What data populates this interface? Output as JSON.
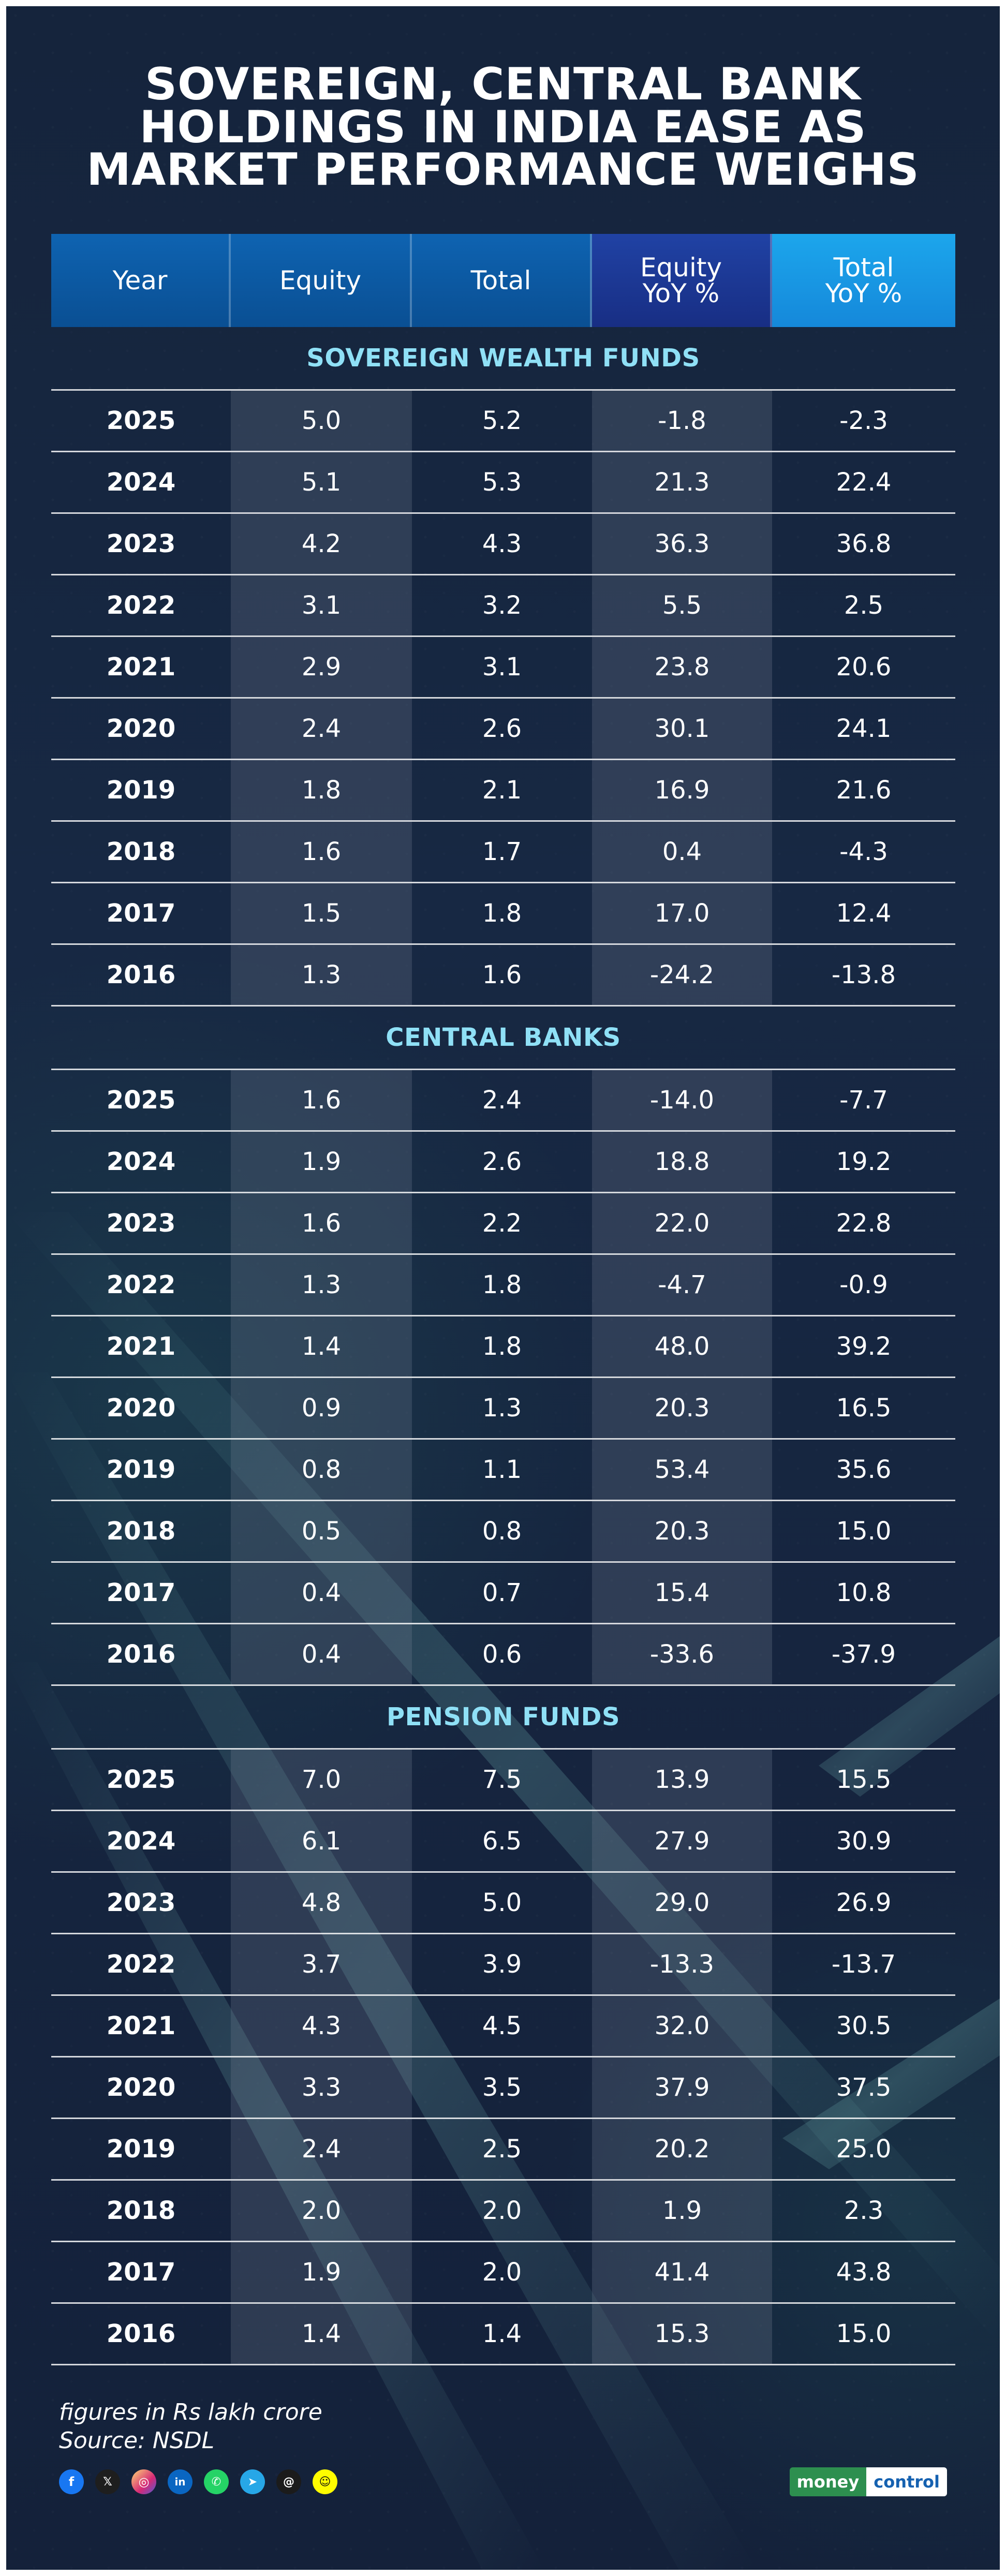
{
  "title": "SOVEREIGN, CENTRAL BANK HOLDINGS IN INDIA EASE AS MARKET PERFORMANCE WEIGHS",
  "columns": [
    "Year",
    "Equity",
    "Total",
    "Equity\nYoY %",
    "Total\nYoY %"
  ],
  "sections": [
    {
      "title": "SOVEREIGN WEALTH FUNDS",
      "rows": [
        [
          "2025",
          "5.0",
          "5.2",
          "-1.8",
          "-2.3"
        ],
        [
          "2024",
          "5.1",
          "5.3",
          "21.3",
          "22.4"
        ],
        [
          "2023",
          "4.2",
          "4.3",
          "36.3",
          "36.8"
        ],
        [
          "2022",
          "3.1",
          "3.2",
          "5.5",
          "2.5"
        ],
        [
          "2021",
          "2.9",
          "3.1",
          "23.8",
          "20.6"
        ],
        [
          "2020",
          "2.4",
          "2.6",
          "30.1",
          "24.1"
        ],
        [
          "2019",
          "1.8",
          "2.1",
          "16.9",
          "21.6"
        ],
        [
          "2018",
          "1.6",
          "1.7",
          "0.4",
          "-4.3"
        ],
        [
          "2017",
          "1.5",
          "1.8",
          "17.0",
          "12.4"
        ],
        [
          "2016",
          "1.3",
          "1.6",
          "-24.2",
          "-13.8"
        ]
      ]
    },
    {
      "title": "CENTRAL BANKS",
      "rows": [
        [
          "2025",
          "1.6",
          "2.4",
          "-14.0",
          "-7.7"
        ],
        [
          "2024",
          "1.9",
          "2.6",
          "18.8",
          "19.2"
        ],
        [
          "2023",
          "1.6",
          "2.2",
          "22.0",
          "22.8"
        ],
        [
          "2022",
          "1.3",
          "1.8",
          "-4.7",
          "-0.9"
        ],
        [
          "2021",
          "1.4",
          "1.8",
          "48.0",
          "39.2"
        ],
        [
          "2020",
          "0.9",
          "1.3",
          "20.3",
          "16.5"
        ],
        [
          "2019",
          "0.8",
          "1.1",
          "53.4",
          "35.6"
        ],
        [
          "2018",
          "0.5",
          "0.8",
          "20.3",
          "15.0"
        ],
        [
          "2017",
          "0.4",
          "0.7",
          "15.4",
          "10.8"
        ],
        [
          "2016",
          "0.4",
          "0.6",
          "-33.6",
          "-37.9"
        ]
      ]
    },
    {
      "title": "PENSION FUNDS",
      "rows": [
        [
          "2025",
          "7.0",
          "7.5",
          "13.9",
          "15.5"
        ],
        [
          "2024",
          "6.1",
          "6.5",
          "27.9",
          "30.9"
        ],
        [
          "2023",
          "4.8",
          "5.0",
          "29.0",
          "26.9"
        ],
        [
          "2022",
          "3.7",
          "3.9",
          "-13.3",
          "-13.7"
        ],
        [
          "2021",
          "4.3",
          "4.5",
          "32.0",
          "30.5"
        ],
        [
          "2020",
          "3.3",
          "3.5",
          "37.9",
          "37.5"
        ],
        [
          "2019",
          "2.4",
          "2.5",
          "20.2",
          "25.0"
        ],
        [
          "2018",
          "2.0",
          "2.0",
          "1.9",
          "2.3"
        ],
        [
          "2017",
          "1.9",
          "2.0",
          "41.4",
          "43.8"
        ],
        [
          "2016",
          "1.4",
          "1.4",
          "15.3",
          "15.0"
        ]
      ]
    }
  ],
  "footer": {
    "note": "figures in Rs lakh crore",
    "source": "Source: NSDL"
  },
  "social_icons": [
    "facebook-icon",
    "x-icon",
    "instagram-icon",
    "linkedin-icon",
    "whatsapp-icon",
    "telegram-icon",
    "threads-icon",
    "snapchat-icon"
  ],
  "brand": {
    "part1": "money",
    "part2": "control"
  },
  "colors": {
    "background": "#172843",
    "header_blue": "#0a4f93",
    "header_equity_yoy": "#182e84",
    "header_total_yoy": "#1588da",
    "section_title": "#8fe0f6",
    "row_shade": "#4f5a70",
    "text": "#ffffff"
  },
  "chart_data": {
    "type": "table",
    "title": "SOVEREIGN, CENTRAL BANK HOLDINGS IN INDIA EASE AS MARKET PERFORMANCE WEIGHS",
    "columns": [
      "Year",
      "Equity",
      "Total",
      "Equity\nYoY %",
      "Total\nYoY %"
    ],
    "sections": [
      {
        "title": "SOVEREIGN WEALTH FUNDS",
        "rows": [
          [
            "2025",
            "5.0",
            "5.2",
            "-1.8",
            "-2.3"
          ],
          [
            "2024",
            "5.1",
            "5.3",
            "21.3",
            "22.4"
          ],
          [
            "2023",
            "4.2",
            "4.3",
            "36.3",
            "36.8"
          ],
          [
            "2022",
            "3.1",
            "3.2",
            "5.5",
            "2.5"
          ],
          [
            "2021",
            "2.9",
            "3.1",
            "23.8",
            "20.6"
          ],
          [
            "2020",
            "2.4",
            "2.6",
            "30.1",
            "24.1"
          ],
          [
            "2019",
            "1.8",
            "2.1",
            "16.9",
            "21.6"
          ],
          [
            "2018",
            "1.6",
            "1.7",
            "0.4",
            "-4.3"
          ],
          [
            "2017",
            "1.5",
            "1.8",
            "17.0",
            "12.4"
          ],
          [
            "2016",
            "1.3",
            "1.6",
            "-24.2",
            "-13.8"
          ]
        ]
      },
      {
        "title": "CENTRAL BANKS",
        "rows": [
          [
            "2025",
            "1.6",
            "2.4",
            "-14.0",
            "-7.7"
          ],
          [
            "2024",
            "1.9",
            "2.6",
            "18.8",
            "19.2"
          ],
          [
            "2023",
            "1.6",
            "2.2",
            "22.0",
            "22.8"
          ],
          [
            "2022",
            "1.3",
            "1.8",
            "-4.7",
            "-0.9"
          ],
          [
            "2021",
            "1.4",
            "1.8",
            "48.0",
            "39.2"
          ],
          [
            "2020",
            "0.9",
            "1.3",
            "20.3",
            "16.5"
          ],
          [
            "2019",
            "0.8",
            "1.1",
            "53.4",
            "35.6"
          ],
          [
            "2018",
            "0.5",
            "0.8",
            "20.3",
            "15.0"
          ],
          [
            "2017",
            "0.4",
            "0.7",
            "15.4",
            "10.8"
          ],
          [
            "2016",
            "0.4",
            "0.6",
            "-33.6",
            "-37.9"
          ]
        ]
      },
      {
        "title": "PENSION FUNDS",
        "rows": [
          [
            "2025",
            "7.0",
            "7.5",
            "13.9",
            "15.5"
          ],
          [
            "2024",
            "6.1",
            "6.5",
            "27.9",
            "30.9"
          ],
          [
            "2023",
            "4.8",
            "5.0",
            "29.0",
            "26.9"
          ],
          [
            "2022",
            "3.7",
            "3.9",
            "-13.3",
            "-13.7"
          ],
          [
            "2021",
            "4.3",
            "4.5",
            "32.0",
            "30.5"
          ],
          [
            "2020",
            "3.3",
            "3.5",
            "37.9",
            "37.5"
          ],
          [
            "2019",
            "2.4",
            "2.5",
            "20.2",
            "25.0"
          ],
          [
            "2018",
            "2.0",
            "2.0",
            "1.9",
            "2.3"
          ],
          [
            "2017",
            "1.9",
            "2.0",
            "41.4",
            "43.8"
          ],
          [
            "2016",
            "1.4",
            "1.4",
            "15.3",
            "15.0"
          ]
        ]
      }
    ]
  }
}
